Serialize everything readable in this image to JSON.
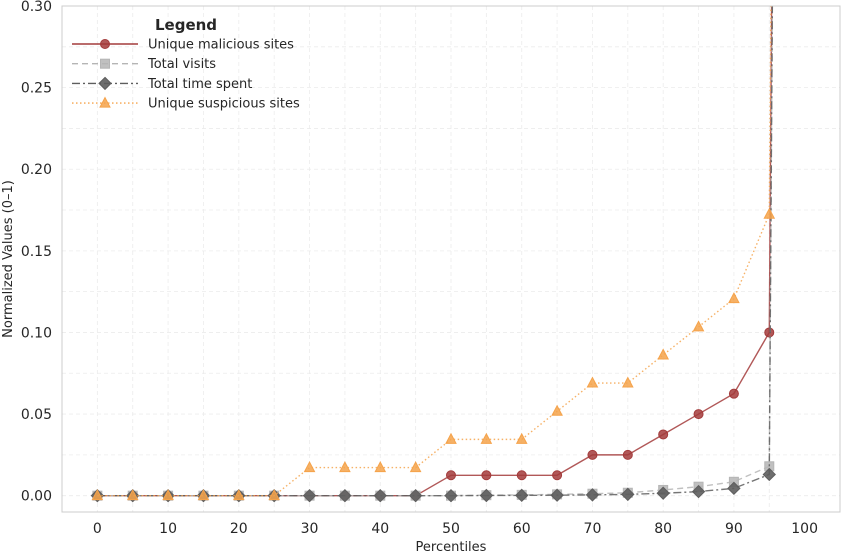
{
  "chart_data": {
    "type": "line",
    "title": "",
    "xlabel": "Percentiles",
    "ylabel": "Normalized Values (0–1)",
    "xlim": [
      -5,
      105
    ],
    "ylim": [
      -0.01,
      0.3
    ],
    "x_ticks": [
      0,
      10,
      20,
      30,
      40,
      50,
      60,
      70,
      80,
      90,
      100
    ],
    "y_ticks": [
      0.0,
      0.05,
      0.1,
      0.15,
      0.2,
      0.25,
      0.3
    ],
    "x_tick_labels": [
      "0",
      "10",
      "20",
      "30",
      "40",
      "50",
      "60",
      "70",
      "80",
      "90",
      "100"
    ],
    "y_tick_labels": [
      "0.00",
      "0.05",
      "0.10",
      "0.15",
      "0.20",
      "0.25",
      "0.30"
    ],
    "grid": true,
    "legend": {
      "title": "Legend",
      "position": "top-left"
    },
    "x": [
      0,
      5,
      10,
      15,
      20,
      25,
      30,
      35,
      40,
      45,
      50,
      55,
      60,
      65,
      70,
      75,
      80,
      85,
      90,
      95
    ],
    "series": [
      {
        "name": "Unique malicious sites",
        "color": "#a33b3b",
        "marker": "circle",
        "line_style": "solid",
        "values": [
          0,
          0,
          0,
          0,
          0,
          0,
          0,
          0,
          0,
          0,
          0.0125,
          0.0125,
          0.0125,
          0.0125,
          0.025,
          0.025,
          0.0375,
          0.05,
          0.0625,
          0.1
        ],
        "end_point": [
          96.5,
          1.0
        ]
      },
      {
        "name": "Total visits",
        "color": "#b5b5b5",
        "marker": "square",
        "line_style": "dashed",
        "values": [
          0,
          0,
          0,
          0,
          0,
          0,
          0,
          0,
          0,
          0,
          0,
          0.0003,
          0.0005,
          0.0008,
          0.0012,
          0.0018,
          0.0035,
          0.0055,
          0.0085,
          0.018
        ],
        "end_point": [
          96.5,
          1.0
        ]
      },
      {
        "name": "Total time spent",
        "color": "#5e5e5e",
        "marker": "diamond",
        "line_style": "dashdot",
        "values": [
          0,
          0,
          0,
          0,
          0,
          0,
          0,
          0,
          0,
          0,
          0,
          0.0001,
          0.0002,
          0.0003,
          0.0005,
          0.0008,
          0.0015,
          0.0025,
          0.0045,
          0.013
        ],
        "end_point": [
          96.5,
          1.0
        ]
      },
      {
        "name": "Unique suspicious sites",
        "color": "#f5a34b",
        "marker": "triangle",
        "line_style": "dotted",
        "values": [
          0,
          0,
          0,
          0,
          0,
          0,
          0.0172,
          0.0172,
          0.0172,
          0.0172,
          0.0345,
          0.0345,
          0.0345,
          0.0517,
          0.069,
          0.069,
          0.0862,
          0.1034,
          0.1207,
          0.1724
        ],
        "end_point": [
          96.5,
          1.0
        ]
      }
    ]
  }
}
